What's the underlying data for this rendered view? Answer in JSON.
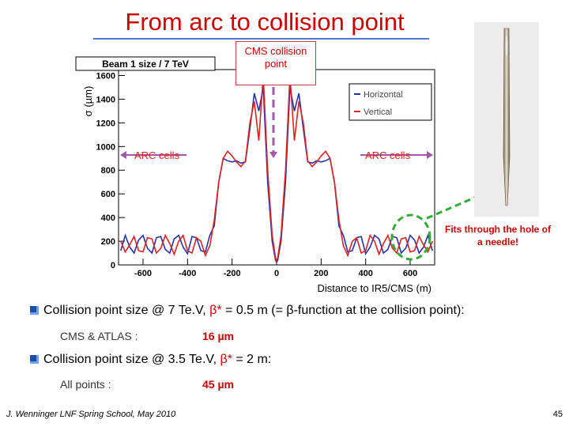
{
  "slide": {
    "title": "From arc to collision point",
    "cms_label": "CMS collision point",
    "arc_left": "ARC cells",
    "arc_right": "ARC cells",
    "needle_note": "Fits through the hole of a needle!",
    "footer": "J. Wenninger LNF Spring School, May 2010",
    "page": "45"
  },
  "bullets": [
    {
      "pre": "Collision point size  @ 7 Te.V, ",
      "beta": "β*",
      "post": " = 0.5 m (= ",
      "beta2": "β",
      "post2": "-function at the collision point):",
      "sub_label": "CMS & ATLAS :",
      "sub_value": "16 µm"
    },
    {
      "pre": "Collision point size  @ 3.5 Te.V, ",
      "beta": "β*",
      "post": " = 2 m:",
      "sub_label": "All points :",
      "sub_value": "45 µm"
    }
  ],
  "colors": {
    "horizontal": "#2233aa",
    "vertical": "#dd2222",
    "title": "#cc0000",
    "arrow": "#a05aa8",
    "needle_arrow": "#33aa33"
  },
  "chart_data": {
    "type": "line",
    "title": "Beam 1 size / 7 TeV",
    "xlabel": "Distance to IR5/CMS (m)",
    "ylabel": "σ (µm)",
    "xlim": [
      -710,
      710
    ],
    "ylim": [
      0,
      1650
    ],
    "xticks": [
      -600,
      -400,
      -200,
      0,
      200,
      400,
      600
    ],
    "yticks": [
      0,
      200,
      400,
      600,
      800,
      1000,
      1200,
      1400,
      1600
    ],
    "legend_position": "top-right",
    "series": [
      {
        "name": "Horizontal",
        "color": "#2233aa",
        "x": [
          -700,
          -680,
          -660,
          -640,
          -620,
          -600,
          -580,
          -560,
          -540,
          -520,
          -500,
          -480,
          -460,
          -440,
          -420,
          -400,
          -380,
          -360,
          -340,
          -320,
          -300,
          -280,
          -260,
          -240,
          -220,
          -200,
          -180,
          -160,
          -140,
          -120,
          -100,
          -80,
          -60,
          -40,
          -20,
          -5,
          0,
          5,
          20,
          40,
          60,
          80,
          100,
          120,
          140,
          160,
          180,
          200,
          220,
          240,
          260,
          280,
          300,
          320,
          340,
          360,
          380,
          400,
          420,
          440,
          460,
          480,
          500,
          520,
          540,
          560,
          580,
          600,
          620,
          640,
          660,
          680,
          700
        ],
        "values": [
          120,
          250,
          150,
          100,
          210,
          250,
          140,
          100,
          230,
          240,
          130,
          100,
          220,
          250,
          150,
          95,
          240,
          230,
          120,
          110,
          250,
          330,
          700,
          900,
          880,
          870,
          880,
          860,
          870,
          1150,
          1450,
          1300,
          1500,
          700,
          200,
          40,
          20,
          40,
          200,
          700,
          1500,
          1300,
          1450,
          1150,
          870,
          860,
          880,
          870,
          880,
          900,
          700,
          330,
          250,
          110,
          120,
          230,
          240,
          95,
          150,
          250,
          220,
          100,
          130,
          240,
          230,
          100,
          140,
          250,
          210,
          100,
          150,
          250,
          120
        ]
      },
      {
        "name": "Vertical",
        "color": "#dd2222",
        "x": [
          -700,
          -680,
          -660,
          -640,
          -620,
          -600,
          -580,
          -560,
          -540,
          -520,
          -500,
          -480,
          -460,
          -440,
          -420,
          -400,
          -380,
          -360,
          -340,
          -320,
          -300,
          -280,
          -260,
          -240,
          -220,
          -200,
          -180,
          -160,
          -140,
          -120,
          -100,
          -80,
          -60,
          -40,
          -20,
          -5,
          0,
          5,
          20,
          40,
          60,
          80,
          100,
          120,
          140,
          160,
          180,
          200,
          220,
          240,
          260,
          280,
          300,
          320,
          340,
          360,
          380,
          400,
          420,
          440,
          460,
          480,
          500,
          520,
          540,
          560,
          580,
          600,
          620,
          640,
          660,
          680,
          700
        ],
        "values": [
          200,
          110,
          170,
          240,
          120,
          110,
          230,
          220,
          100,
          140,
          250,
          180,
          90,
          200,
          250,
          120,
          100,
          230,
          200,
          80,
          160,
          380,
          700,
          900,
          960,
          920,
          870,
          830,
          880,
          1200,
          1380,
          1050,
          1600,
          800,
          250,
          60,
          30,
          60,
          250,
          800,
          1600,
          1050,
          1380,
          1200,
          880,
          830,
          870,
          920,
          960,
          900,
          700,
          380,
          160,
          80,
          200,
          230,
          100,
          120,
          250,
          200,
          90,
          180,
          250,
          140,
          100,
          220,
          230,
          110,
          120,
          240,
          170,
          110,
          200
        ]
      }
    ]
  }
}
